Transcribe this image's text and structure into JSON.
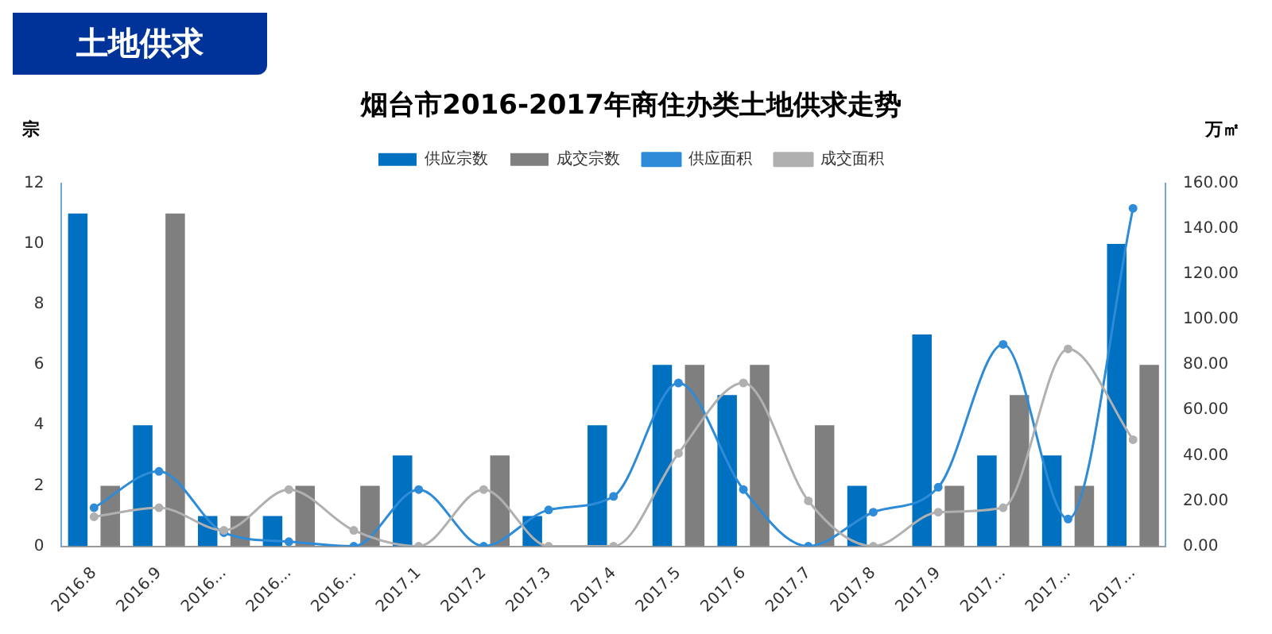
{
  "chart_data": {
    "type": "bar",
    "title": "烟台市2016-2017年商住办类土地供求走势",
    "annotations": [
      "土地供求"
    ],
    "ylabel": "宗",
    "y2label": "万㎡",
    "categories": [
      "2016.8",
      "2016.9",
      "2016...",
      "2016...",
      "2016...",
      "2017.1",
      "2017.2",
      "2017.3",
      "2017.4",
      "2017.5",
      "2017.6",
      "2017.7",
      "2017.8",
      "2017.9",
      "2017...",
      "2017...",
      "2017..."
    ],
    "series": [
      {
        "name": "供应宗数",
        "color": "#0070c0",
        "values": [
          11,
          4,
          1,
          1,
          0,
          3,
          0,
          1,
          4,
          6,
          5,
          0,
          2,
          7,
          3,
          3,
          10
        ]
      },
      {
        "name": "成交宗数",
        "color": "#7f7f7f",
        "values": [
          2,
          11,
          1,
          2,
          2,
          0,
          3,
          0,
          0,
          6,
          6,
          4,
          0,
          2,
          5,
          2,
          6
        ]
      },
      {
        "name": "供应面积",
        "type": "line",
        "axis": "y2",
        "color": "#2e8bd8",
        "values": [
          17,
          33,
          6,
          2,
          0,
          25,
          0,
          16,
          22,
          72,
          25,
          0,
          15,
          26,
          89,
          12,
          149
        ]
      },
      {
        "name": "成交面积",
        "type": "line",
        "axis": "y2",
        "color": "#b0b0b0",
        "values": [
          13,
          17,
          7,
          25,
          7,
          0,
          25,
          0,
          0,
          41,
          72,
          20,
          0,
          15,
          17,
          87,
          47
        ]
      }
    ],
    "ylim": [
      0,
      12
    ],
    "yticks": [
      0,
      2,
      4,
      6,
      8,
      10,
      12
    ],
    "y2lim": [
      0,
      160
    ],
    "y2ticks": [
      {
        "value": 0,
        "label": "0.00"
      },
      {
        "value": 20,
        "label": "20.00"
      },
      {
        "value": 40,
        "label": "40.00"
      },
      {
        "value": 60,
        "label": "60.00"
      },
      {
        "value": 80,
        "label": "80.00"
      },
      {
        "value": 100,
        "label": "100.00"
      },
      {
        "value": 120,
        "label": "120.00"
      },
      {
        "value": 140,
        "label": "140.00"
      },
      {
        "value": 160,
        "label": "160.00"
      }
    ],
    "legend": "top",
    "grid": false,
    "marker": "circle",
    "line_style": "solid"
  }
}
